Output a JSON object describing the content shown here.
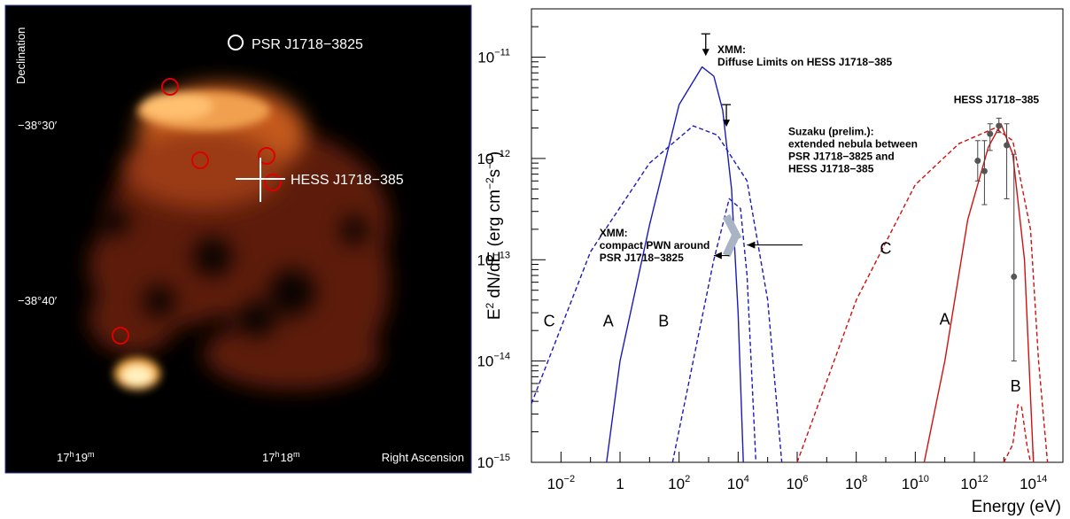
{
  "sky_map": {
    "axis_labels": {
      "x": "Right Ascension",
      "y": "Declination"
    },
    "dec_ticks": [
      "−38°30′",
      "−38°40′"
    ],
    "ra_ticks": [
      {
        "h": "17",
        "hsup": "h",
        "m": "19",
        "msup": "m"
      },
      {
        "h": "17",
        "hsup": "h",
        "m": "18",
        "msup": "m"
      }
    ],
    "labels": {
      "pulsar": "PSR J1718−3825",
      "source": "HESS J1718−385"
    },
    "colors": {
      "background": "#000000",
      "frame": "#3333aa",
      "marker_red": "#dd0000",
      "marker_white": "#ffffff"
    }
  },
  "chart_data": {
    "type": "line",
    "xlabel": "Energy (eV)",
    "ylabel": "E² dN/dE (erg cm⁻² s⁻¹)",
    "x_scale": "log",
    "y_scale": "log",
    "xlim": [
      0.001,
      1000000000000000.0
    ],
    "ylim": [
      1e-15,
      3e-11
    ],
    "x_ticks": [
      {
        "value": 0.01,
        "base": "10",
        "exp": "−2"
      },
      {
        "value": 1,
        "base": "1",
        "exp": ""
      },
      {
        "value": 100,
        "base": "10",
        "exp": "2"
      },
      {
        "value": 10000,
        "base": "10",
        "exp": "4"
      },
      {
        "value": 1000000.0,
        "base": "10",
        "exp": "6"
      },
      {
        "value": 100000000.0,
        "base": "10",
        "exp": "8"
      },
      {
        "value": 10000000000.0,
        "base": "10",
        "exp": "10"
      },
      {
        "value": 1000000000000.0,
        "base": "10",
        "exp": "12"
      },
      {
        "value": 100000000000000.0,
        "base": "10",
        "exp": "14"
      }
    ],
    "y_ticks": [
      {
        "value": 1e-15,
        "base": "10",
        "exp": "−15"
      },
      {
        "value": 1e-14,
        "base": "10",
        "exp": "−14"
      },
      {
        "value": 1e-13,
        "base": "10",
        "exp": "−13"
      },
      {
        "value": 1e-12,
        "base": "10",
        "exp": "−12"
      },
      {
        "value": 1e-11,
        "base": "10",
        "exp": "−11"
      }
    ],
    "series": [
      {
        "name": "A",
        "component": "synchrotron",
        "color": "#1a1ab8",
        "dash": false,
        "points": [
          [
            0.35,
            1e-15
          ],
          [
            1,
            1e-14
          ],
          [
            10,
            2.2e-13
          ],
          [
            100,
            3.4e-12
          ],
          [
            600,
            8e-12
          ],
          [
            1500,
            6.5e-12
          ],
          [
            3000,
            3e-12
          ],
          [
            6000,
            5e-13
          ],
          [
            10000,
            3e-14
          ],
          [
            15000,
            1e-15
          ]
        ]
      },
      {
        "name": "B",
        "component": "synchrotron",
        "color": "#1a1ab8",
        "dash": true,
        "points": [
          [
            60,
            1e-15
          ],
          [
            300,
            1e-14
          ],
          [
            1500,
            1e-13
          ],
          [
            5000,
            4e-13
          ],
          [
            12000,
            3.2e-13
          ],
          [
            20000,
            7e-14
          ],
          [
            40000,
            1e-15
          ]
        ]
      },
      {
        "name": "C",
        "component": "synchrotron",
        "color": "#1a1ab8",
        "dash": true,
        "points": [
          [
            0.001,
            3.8e-15
          ],
          [
            0.1,
            1.2e-13
          ],
          [
            10,
            9e-13
          ],
          [
            300,
            2.1e-12
          ],
          [
            2000,
            1.7e-12
          ],
          [
            20000,
            6e-13
          ],
          [
            100000,
            4e-14
          ],
          [
            300000,
            1e-15
          ]
        ]
      },
      {
        "name": "A",
        "component": "inverse-compton",
        "color": "#d01010",
        "dash": false,
        "points": [
          [
            20000000000.0,
            1e-15
          ],
          [
            100000000000.0,
            1e-14
          ],
          [
            600000000000.0,
            2.5e-13
          ],
          [
            3000000000000.0,
            1.3e-12
          ],
          [
            8000000000000.0,
            2.2e-12
          ],
          [
            20000000000000.0,
            1.1e-12
          ],
          [
            50000000000000.0,
            1e-13
          ],
          [
            100000000000000.0,
            1e-15
          ]
        ]
      },
      {
        "name": "B",
        "component": "inverse-compton",
        "color": "#d01010",
        "dash": true,
        "points": [
          [
            10000000000000.0,
            1e-15
          ],
          [
            20000000000000.0,
            1.5e-15
          ],
          [
            30000000000000.0,
            3.7e-15
          ],
          [
            40000000000000.0,
            3.5e-15
          ],
          [
            60000000000000.0,
            1.5e-15
          ],
          [
            80000000000000.0,
            1e-15
          ]
        ]
      },
      {
        "name": "C",
        "component": "inverse-compton",
        "color": "#d01010",
        "dash": true,
        "points": [
          [
            1000000.0,
            1e-15
          ],
          [
            100000000.0,
            4e-14
          ],
          [
            10000000000.0,
            5.5e-13
          ],
          [
            300000000000.0,
            1.4e-12
          ],
          [
            5000000000000.0,
            2e-12
          ],
          [
            20000000000000.0,
            1.5e-12
          ],
          [
            80000000000000.0,
            2e-13
          ],
          [
            150000000000000.0,
            1e-14
          ],
          [
            300000000000000.0,
            1e-15
          ]
        ]
      }
    ],
    "hess_points": {
      "points": [
        {
          "x": 1300000000000.0,
          "y": 9.5e-13,
          "lo": 6e-13,
          "hi": 1.5e-12
        },
        {
          "x": 2200000000000.0,
          "y": 7.5e-13,
          "lo": 3.5e-13,
          "hi": 1.5e-12
        },
        {
          "x": 3400000000000.0,
          "y": 1.75e-12,
          "lo": 1.2e-12,
          "hi": 2.2e-12
        },
        {
          "x": 6800000000000.0,
          "y": 2.1e-12,
          "lo": 1.8e-12,
          "hi": 2.5e-12
        },
        {
          "x": 12500000000000.0,
          "y": 1.35e-12,
          "lo": 4e-13,
          "hi": 2.2e-12
        },
        {
          "x": 22000000000000.0,
          "y": 6.8e-14,
          "lo": 1e-14,
          "hi": 1.1e-12
        }
      ]
    },
    "upper_limits": [
      {
        "x": 800,
        "y": 1.7e-11
      },
      {
        "x": 4000,
        "y": 3.4e-12
      }
    ],
    "suzaku_bands": [
      {
        "from": [
          4000,
          2.7e-13
        ],
        "to": [
          10000,
          1.6e-13
        ]
      },
      {
        "from": [
          4000,
          1.1e-13
        ],
        "to": [
          8000,
          1.7e-13
        ]
      }
    ],
    "curve_labels": [
      {
        "text": "C",
        "x": 0.004,
        "y": 2.2e-14
      },
      {
        "text": "A",
        "x": 0.4,
        "y": 2.2e-14
      },
      {
        "text": "B",
        "x": 30,
        "y": 2.2e-14
      },
      {
        "text": "C",
        "x": 1000000000.0,
        "y": 1.15e-13
      },
      {
        "text": "A",
        "x": 100000000000.0,
        "y": 2.3e-14
      },
      {
        "text": "B",
        "x": 25000000000000.0,
        "y": 5e-15
      }
    ],
    "annotations": [
      {
        "lines": [
          "XMM:",
          "Diffuse Limits on HESS J1718−385"
        ],
        "x": 2000,
        "y": 1.1e-11
      },
      {
        "lines": [
          "HESS J1718−385"
        ],
        "x": 200000000000.0,
        "y": 3.5e-12
      },
      {
        "lines": [
          "Suzaku (prelim.):",
          "extended nebula between",
          "PSR J1718−3825 and",
          "HESS J1718−385"
        ],
        "x": 500000.0,
        "y": 1.7e-12
      },
      {
        "lines": [
          "XMM:",
          "compact PWN around",
          "PSR J1718−3825"
        ],
        "x": 0.2,
        "y": 1.7e-13
      }
    ],
    "arrows": [
      {
        "from": [
          1500000.0,
          1.4e-13
        ],
        "to": [
          20000,
          1.4e-13
        ]
      },
      {
        "from": [
          5000,
          1.1e-13
        ],
        "to": [
          1500,
          1.1e-13
        ]
      }
    ],
    "grid": false,
    "legend": "none"
  }
}
